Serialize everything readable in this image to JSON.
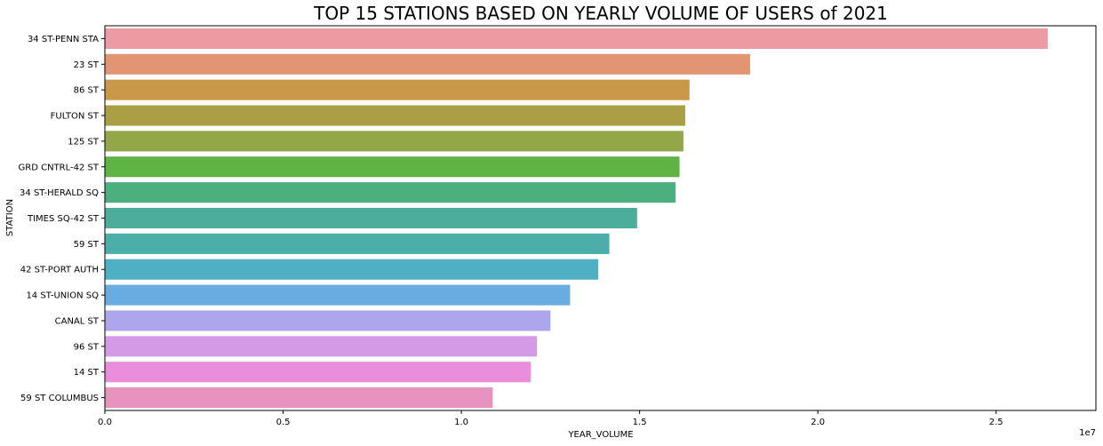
{
  "chart_data": {
    "type": "bar",
    "orientation": "horizontal",
    "title": "TOP 15 STATIONS BASED ON YEARLY VOLUME OF USERS of 2021",
    "xlabel": "YEAR_VOLUME",
    "ylabel": "STATION",
    "x_offset_text": "1e7",
    "xlim": [
      0,
      2.78
    ],
    "x_ticks": [
      0,
      0.5,
      1.0,
      1.5,
      2.0,
      2.5
    ],
    "x_tick_labels": [
      "0.0",
      "0.5",
      "1.0",
      "1.5",
      "2.0",
      "2.5"
    ],
    "grid": false,
    "categories": [
      "34 ST-PENN STA",
      "23 ST",
      "86 ST",
      "FULTON ST",
      "125 ST",
      "GRD CNTRL-42 ST",
      "34 ST-HERALD SQ",
      "TIMES SQ-42 ST",
      "59 ST",
      "42 ST-PORT AUTH",
      "14 ST-UNION SQ",
      "CANAL ST",
      "96 ST",
      "14 ST",
      "59 ST COLUMBUS"
    ],
    "values": [
      2.645,
      1.81,
      1.64,
      1.628,
      1.623,
      1.612,
      1.601,
      1.493,
      1.415,
      1.384,
      1.305,
      1.25,
      1.212,
      1.195,
      1.088
    ],
    "colors": [
      "#ec9aa3",
      "#e29572",
      "#c99848",
      "#aa9f44",
      "#93a748",
      "#5fb244",
      "#4cb07e",
      "#4cae9a",
      "#4caea9",
      "#4fb0c4",
      "#69ace1",
      "#ada6ec",
      "#d59ae5",
      "#e98ddc",
      "#e893bf"
    ]
  }
}
